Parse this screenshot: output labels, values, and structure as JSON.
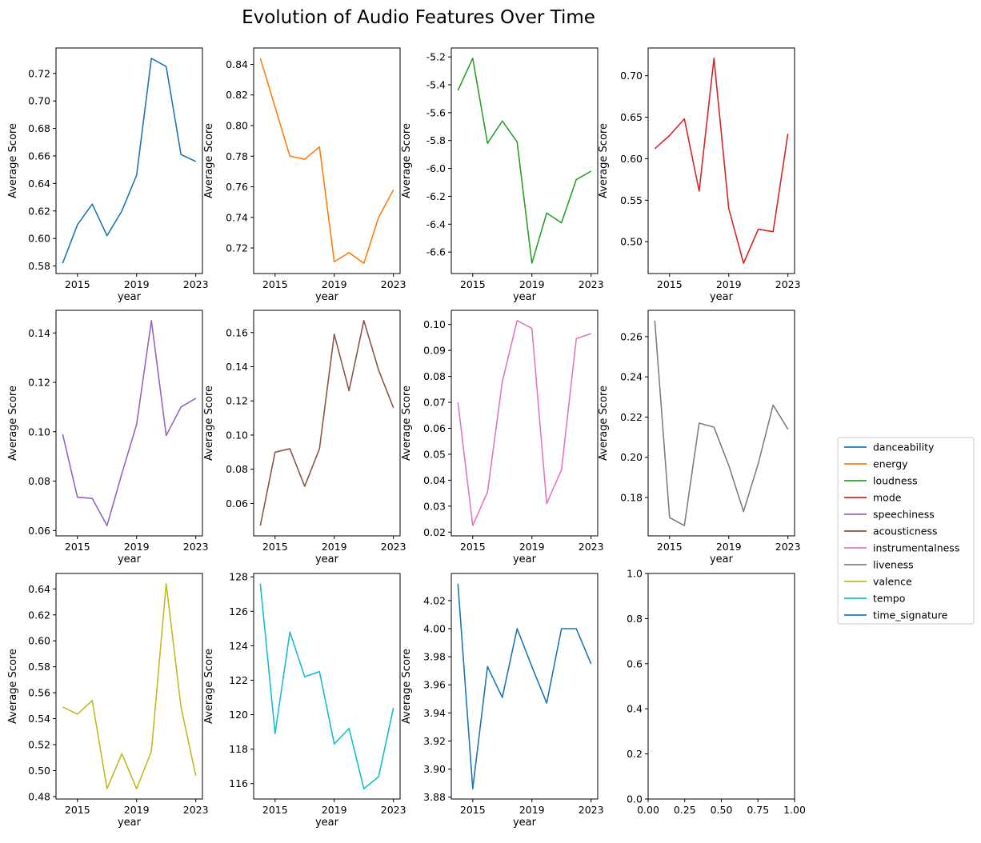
{
  "figure": {
    "title": "Evolution of Audio Features Over Time"
  },
  "chart_data": [
    {
      "type": "line",
      "series": [
        {
          "name": "danceability",
          "color": "#1f77b4",
          "x": [
            2014,
            2015,
            2016,
            2017,
            2018,
            2019,
            2020,
            2021,
            2022,
            2023
          ],
          "y": [
            0.582,
            0.61,
            0.625,
            0.602,
            0.62,
            0.646,
            0.731,
            0.725,
            0.661,
            0.656
          ]
        }
      ],
      "xlabel": "year",
      "ylabel": "Average Score",
      "xticks": [
        "2015",
        "2019",
        "2023"
      ],
      "yticks": [
        "0.58",
        "0.60",
        "0.62",
        "0.64",
        "0.66",
        "0.68",
        "0.70",
        "0.72"
      ],
      "xlim": [
        2013.55,
        2023.45
      ],
      "ylim": [
        0.5745,
        0.7385
      ]
    },
    {
      "type": "line",
      "series": [
        {
          "name": "energy",
          "color": "#ff7f0e",
          "x": [
            2014,
            2015,
            2016,
            2017,
            2018,
            2019,
            2020,
            2021,
            2022,
            2023
          ],
          "y": [
            0.844,
            0.812,
            0.78,
            0.778,
            0.786,
            0.711,
            0.717,
            0.71,
            0.74,
            0.758
          ]
        }
      ],
      "xlabel": "year",
      "ylabel": "Average Score",
      "xticks": [
        "2015",
        "2019",
        "2023"
      ],
      "yticks": [
        "0.72",
        "0.74",
        "0.76",
        "0.78",
        "0.80",
        "0.82",
        "0.84"
      ],
      "xlim": [
        2013.55,
        2023.45
      ],
      "ylim": [
        0.7033,
        0.8507
      ]
    },
    {
      "type": "line",
      "series": [
        {
          "name": "loudness",
          "color": "#2ca02c",
          "x": [
            2014,
            2015,
            2016,
            2017,
            2018,
            2019,
            2020,
            2021,
            2022,
            2023
          ],
          "y": [
            -5.44,
            -5.21,
            -5.82,
            -5.66,
            -5.81,
            -6.68,
            -6.32,
            -6.39,
            -6.08,
            -6.02
          ]
        }
      ],
      "xlabel": "year",
      "ylabel": "Average Score",
      "xticks": [
        "2015",
        "2019",
        "2023"
      ],
      "yticks": [
        "-6.6",
        "-6.4",
        "-6.2",
        "-6.0",
        "-5.8",
        "-5.6",
        "-5.4",
        "-5.2"
      ],
      "xlim": [
        2013.55,
        2023.45
      ],
      "ylim": [
        -6.754,
        -5.136
      ]
    },
    {
      "type": "line",
      "series": [
        {
          "name": "mode",
          "color": "#d62728",
          "x": [
            2014,
            2015,
            2016,
            2017,
            2018,
            2019,
            2020,
            2021,
            2022,
            2023
          ],
          "y": [
            0.612,
            0.628,
            0.648,
            0.561,
            0.721,
            0.54,
            0.474,
            0.515,
            0.512,
            0.63
          ]
        }
      ],
      "xlabel": "year",
      "ylabel": "Average Score",
      "xticks": [
        "2015",
        "2019",
        "2023"
      ],
      "yticks": [
        "0.50",
        "0.55",
        "0.60",
        "0.65",
        "0.70"
      ],
      "xlim": [
        2013.55,
        2023.45
      ],
      "ylim": [
        0.4616,
        0.7334
      ]
    },
    {
      "type": "line",
      "series": [
        {
          "name": "speechiness",
          "color": "#9467bd",
          "x": [
            2014,
            2015,
            2016,
            2017,
            2018,
            2019,
            2020,
            2021,
            2022,
            2023
          ],
          "y": [
            0.099,
            0.0735,
            0.073,
            0.062,
            0.083,
            0.103,
            0.145,
            0.0985,
            0.11,
            0.1135
          ]
        }
      ],
      "xlabel": "year",
      "ylabel": "Average Score",
      "xticks": [
        "2015",
        "2019",
        "2023"
      ],
      "yticks": [
        "0.06",
        "0.08",
        "0.10",
        "0.12",
        "0.14"
      ],
      "xlim": [
        2013.55,
        2023.45
      ],
      "ylim": [
        0.05785,
        0.14915
      ]
    },
    {
      "type": "line",
      "series": [
        {
          "name": "acousticness",
          "color": "#8c564b",
          "x": [
            2014,
            2015,
            2016,
            2017,
            2018,
            2019,
            2020,
            2021,
            2022,
            2023
          ],
          "y": [
            0.047,
            0.09,
            0.092,
            0.07,
            0.092,
            0.159,
            0.126,
            0.167,
            0.138,
            0.116
          ]
        }
      ],
      "xlabel": "year",
      "ylabel": "Average Score",
      "xticks": [
        "2015",
        "2019",
        "2023"
      ],
      "yticks": [
        "0.06",
        "0.08",
        "0.10",
        "0.12",
        "0.14",
        "0.16"
      ],
      "xlim": [
        2013.55,
        2023.45
      ],
      "ylim": [
        0.041,
        0.173
      ]
    },
    {
      "type": "line",
      "series": [
        {
          "name": "instrumentalness",
          "color": "#e377c2",
          "x": [
            2014,
            2015,
            2016,
            2017,
            2018,
            2019,
            2020,
            2021,
            2022,
            2023
          ],
          "y": [
            0.07,
            0.0225,
            0.0355,
            0.078,
            0.1015,
            0.0985,
            0.031,
            0.044,
            0.0945,
            0.0965
          ]
        }
      ],
      "xlabel": "year",
      "ylabel": "Average Score",
      "xticks": [
        "2015",
        "2019",
        "2023"
      ],
      "yticks": [
        "0.02",
        "0.03",
        "0.04",
        "0.05",
        "0.06",
        "0.07",
        "0.08",
        "0.09",
        "0.10"
      ],
      "xlim": [
        2013.55,
        2023.45
      ],
      "ylim": [
        0.01855,
        0.10545
      ]
    },
    {
      "type": "line",
      "series": [
        {
          "name": "liveness",
          "color": "#7f7f7f",
          "x": [
            2014,
            2015,
            2016,
            2017,
            2018,
            2019,
            2020,
            2021,
            2022,
            2023
          ],
          "y": [
            0.268,
            0.17,
            0.166,
            0.217,
            0.215,
            0.196,
            0.173,
            0.197,
            0.226,
            0.214
          ]
        }
      ],
      "xlabel": "year",
      "ylabel": "Average Score",
      "xticks": [
        "2015",
        "2019",
        "2023"
      ],
      "yticks": [
        "0.18",
        "0.20",
        "0.22",
        "0.24",
        "0.26"
      ],
      "xlim": [
        2013.55,
        2023.45
      ],
      "ylim": [
        0.1609,
        0.2731
      ]
    },
    {
      "type": "line",
      "series": [
        {
          "name": "valence",
          "color": "#bcbd22",
          "x": [
            2014,
            2015,
            2016,
            2017,
            2018,
            2019,
            2020,
            2021,
            2022,
            2023
          ],
          "y": [
            0.549,
            0.5435,
            0.554,
            0.486,
            0.513,
            0.486,
            0.515,
            0.644,
            0.549,
            0.496
          ]
        }
      ],
      "xlabel": "year",
      "ylabel": "Average Score",
      "xticks": [
        "2015",
        "2019",
        "2023"
      ],
      "yticks": [
        "0.48",
        "0.50",
        "0.52",
        "0.54",
        "0.56",
        "0.58",
        "0.60",
        "0.62",
        "0.64"
      ],
      "xlim": [
        2013.55,
        2023.45
      ],
      "ylim": [
        0.4781,
        0.6519
      ]
    },
    {
      "type": "line",
      "series": [
        {
          "name": "tempo",
          "color": "#17becf",
          "x": [
            2014,
            2015,
            2016,
            2017,
            2018,
            2019,
            2020,
            2021,
            2022,
            2023
          ],
          "y": [
            127.6,
            118.9,
            124.8,
            122.2,
            122.5,
            118.3,
            119.2,
            115.7,
            116.4,
            120.4
          ]
        }
      ],
      "xlabel": "year",
      "ylabel": "Average Score",
      "xticks": [
        "2015",
        "2019",
        "2023"
      ],
      "yticks": [
        "116",
        "118",
        "120",
        "122",
        "124",
        "126",
        "128"
      ],
      "xlim": [
        2013.55,
        2023.45
      ],
      "ylim": [
        115.105,
        128.195
      ]
    },
    {
      "type": "line",
      "series": [
        {
          "name": "time_signature",
          "color": "#1f77b4",
          "x": [
            2014,
            2015,
            2016,
            2017,
            2018,
            2019,
            2020,
            2021,
            2022,
            2023
          ],
          "y": [
            4.032,
            3.886,
            3.973,
            3.951,
            4.0,
            3.973,
            3.947,
            4.0,
            4.0,
            3.975
          ]
        }
      ],
      "xlabel": "year",
      "ylabel": "Average Score",
      "xticks": [
        "2015",
        "2019",
        "2023"
      ],
      "yticks": [
        "3.88",
        "3.90",
        "3.92",
        "3.94",
        "3.96",
        "3.98",
        "4.00",
        "4.02"
      ],
      "xlim": [
        2013.55,
        2023.45
      ],
      "ylim": [
        3.8787,
        4.0393
      ]
    },
    {
      "type": "line",
      "series": [],
      "xlabel": "",
      "ylabel": "",
      "xticks": [
        "0.00",
        "0.25",
        "0.50",
        "0.75",
        "1.00"
      ],
      "yticks": [
        "0.0",
        "0.2",
        "0.4",
        "0.6",
        "0.8",
        "1.0"
      ],
      "xlim": [
        0,
        1
      ],
      "ylim": [
        0,
        1
      ]
    }
  ],
  "legend": {
    "placement": "right",
    "entries": [
      {
        "label": "danceability",
        "color": "#1f77b4"
      },
      {
        "label": "energy",
        "color": "#ff7f0e"
      },
      {
        "label": "loudness",
        "color": "#2ca02c"
      },
      {
        "label": "mode",
        "color": "#d62728"
      },
      {
        "label": "speechiness",
        "color": "#9467bd"
      },
      {
        "label": "acousticness",
        "color": "#8c564b"
      },
      {
        "label": "instrumentalness",
        "color": "#e377c2"
      },
      {
        "label": "liveness",
        "color": "#7f7f7f"
      },
      {
        "label": "valence",
        "color": "#bcbd22"
      },
      {
        "label": "tempo",
        "color": "#17becf"
      },
      {
        "label": "time_signature",
        "color": "#1f77b4"
      }
    ]
  }
}
